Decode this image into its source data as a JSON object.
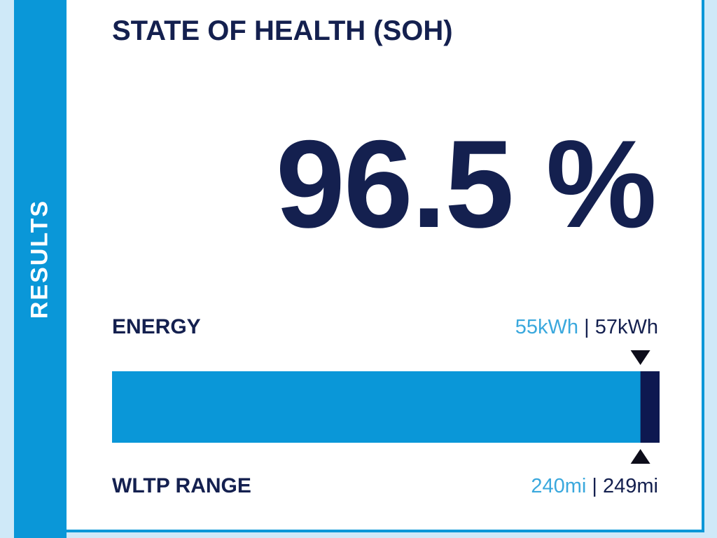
{
  "side_label": "RESULTS",
  "title": "STATE OF HEALTH (SOH)",
  "soh": {
    "value": 96.5,
    "label": "96.5 %"
  },
  "separator": "|",
  "energy": {
    "label": "ENERGY",
    "measured": "55kWh",
    "nominal": "57kWh"
  },
  "range": {
    "label": "WLTP RANGE",
    "measured": "240mi",
    "nominal": "249mi"
  }
}
